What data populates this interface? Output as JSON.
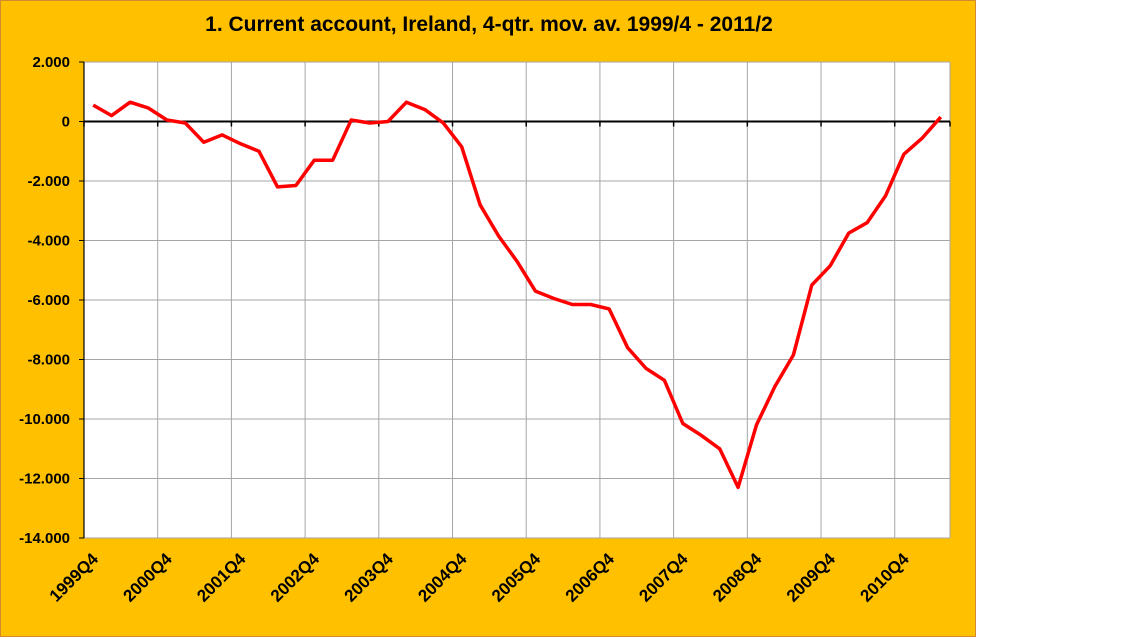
{
  "chart_data": {
    "type": "line",
    "title": "1. Current account, Ireland, 4-qtr. mov. av. 1999/4 - 2011/2",
    "xlabel": "",
    "ylabel": "",
    "ylim": [
      -14000,
      2000
    ],
    "ytick_values": [
      2000,
      0,
      -2000,
      -4000,
      -6000,
      -8000,
      -10000,
      -12000,
      -14000
    ],
    "ytick_labels": [
      "2.000",
      "0",
      "-2.000",
      "-4.000",
      "-6.000",
      "-8.000",
      "-10.000",
      "-12.000",
      "-14.000"
    ],
    "xtick_labels": [
      "1999Q4",
      "2000Q4",
      "2001Q4",
      "2002Q4",
      "2003Q4",
      "2004Q4",
      "2005Q4",
      "2006Q4",
      "2007Q4",
      "2008Q4",
      "2009Q4",
      "2010Q4"
    ],
    "grid": true,
    "legend": "none",
    "colors": {
      "background": "#FFC000",
      "plot": "#FFFFFF",
      "line": "#FF0000",
      "grid": "#A6A6A6",
      "axis": "#000000"
    },
    "categories": [
      "1999Q4",
      "2000Q1",
      "2000Q2",
      "2000Q3",
      "2000Q4",
      "2001Q1",
      "2001Q2",
      "2001Q3",
      "2001Q4",
      "2002Q1",
      "2002Q2",
      "2002Q3",
      "2002Q4",
      "2003Q1",
      "2003Q2",
      "2003Q3",
      "2003Q4",
      "2004Q1",
      "2004Q2",
      "2004Q3",
      "2004Q4",
      "2005Q1",
      "2005Q2",
      "2005Q3",
      "2005Q4",
      "2006Q1",
      "2006Q2",
      "2006Q3",
      "2006Q4",
      "2007Q1",
      "2007Q2",
      "2007Q3",
      "2007Q4",
      "2008Q1",
      "2008Q2",
      "2008Q3",
      "2008Q4",
      "2009Q1",
      "2009Q2",
      "2009Q3",
      "2009Q4",
      "2010Q1",
      "2010Q2",
      "2010Q3",
      "2010Q4",
      "2011Q1",
      "2011Q2"
    ],
    "series": [
      {
        "name": "",
        "values": [
          550,
          200,
          650,
          450,
          50,
          -50,
          -700,
          -450,
          -750,
          -1000,
          -2200,
          -2150,
          -1300,
          -1300,
          50,
          -50,
          0,
          650,
          400,
          -50,
          -850,
          -2800,
          -3850,
          -4700,
          -5700,
          -5950,
          -6150,
          -6150,
          -6300,
          -7600,
          -8300,
          -8700,
          -10150,
          -10550,
          -11000,
          -12300,
          -10200,
          -8900,
          -7850,
          -5500,
          -4850,
          -3750,
          -3400,
          -2500,
          -1100,
          -550,
          150
        ]
      }
    ]
  }
}
